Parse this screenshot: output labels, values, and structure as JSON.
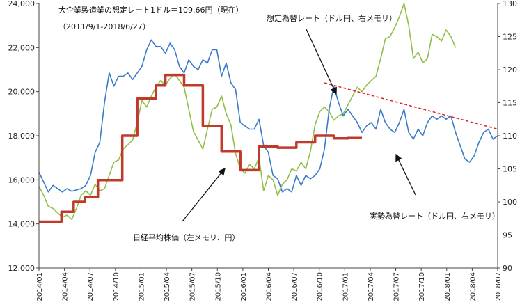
{
  "chart_data": {
    "type": "line",
    "title": "大企業製造業の想定レート1ドル＝109.66円（現在）",
    "subtitle": "（2011/9/1-2018/6/27）",
    "x_labels": [
      "2014/01",
      "2014/04",
      "2014/07",
      "2014/10",
      "2015/01",
      "2015/04",
      "2015/07",
      "2015/10",
      "2016/01",
      "2016/04",
      "2016/07",
      "2016/10",
      "2017/01",
      "2017/04",
      "2017/07",
      "2017/10",
      "2018/01",
      "2018/04",
      "2018/07"
    ],
    "y_left": {
      "ticks": [
        "12,000",
        "14,000",
        "16,000",
        "18,000",
        "20,000",
        "22,000",
        "24,000"
      ],
      "ylim": [
        12000,
        24000
      ]
    },
    "y_right": {
      "ticks": [
        "90",
        "95",
        "100",
        "105",
        "110",
        "115",
        "120",
        "125",
        "130"
      ],
      "ylim": [
        90,
        130
      ]
    },
    "annotations": {
      "assumed_rate": "想定為替レート（ドル円、右メモリ）",
      "actual_rate": "実勢為替レート（ドル円、右メモリ）",
      "nikkei": "日経平均株価（左メモリ、円）"
    },
    "series": [
      {
        "name": "想定為替レート（ドル円、右メモリ）",
        "color": "#c0392b",
        "axis": "right",
        "step": true,
        "points": [
          [
            0,
            97
          ],
          [
            2.4,
            97
          ],
          [
            2.4,
            98.5
          ],
          [
            3.7,
            98.5
          ],
          [
            3.7,
            100
          ],
          [
            4.9,
            100
          ],
          [
            4.9,
            100.7
          ],
          [
            6.3,
            100.7
          ],
          [
            6.3,
            103.3
          ],
          [
            8.9,
            103.3
          ],
          [
            8.9,
            110
          ],
          [
            10.5,
            110
          ],
          [
            10.5,
            115.6
          ],
          [
            12.5,
            115.6
          ],
          [
            12.5,
            117.6
          ],
          [
            13.5,
            117.6
          ],
          [
            13.5,
            119.2
          ],
          [
            15.5,
            119.2
          ],
          [
            15.5,
            117.6
          ],
          [
            17.5,
            117.6
          ],
          [
            17.5,
            111.5
          ],
          [
            19.5,
            111.5
          ],
          [
            19.5,
            107.6
          ],
          [
            21.5,
            107.6
          ],
          [
            21.5,
            104.8
          ],
          [
            23.5,
            104.8
          ],
          [
            23.5,
            108.4
          ],
          [
            25.5,
            108.4
          ],
          [
            25.5,
            108.2
          ],
          [
            27.5,
            108.2
          ],
          [
            27.5,
            109
          ],
          [
            29.5,
            109
          ],
          [
            29.5,
            110
          ],
          [
            31.5,
            110
          ],
          [
            31.5,
            109.6
          ],
          [
            33,
            109.6
          ],
          [
            33,
            109.66
          ],
          [
            34.5,
            109.66
          ]
        ]
      },
      {
        "name": "実勢為替レート（ドル円、右メモリ）",
        "color": "#3a7bc8",
        "axis": "right",
        "points": [
          [
            0,
            104.5
          ],
          [
            0.5,
            103
          ],
          [
            1,
            101.5
          ],
          [
            1.5,
            102.5
          ],
          [
            2,
            102
          ],
          [
            2.5,
            101.5
          ],
          [
            3,
            102
          ],
          [
            3.5,
            101.6
          ],
          [
            4,
            101.8
          ],
          [
            4.5,
            102
          ],
          [
            5,
            102.5
          ],
          [
            5.5,
            104
          ],
          [
            6,
            107.5
          ],
          [
            6.5,
            109
          ],
          [
            7,
            115
          ],
          [
            7.5,
            119.5
          ],
          [
            8,
            117.5
          ],
          [
            8.5,
            119
          ],
          [
            9,
            119
          ],
          [
            9.5,
            119.5
          ],
          [
            10,
            118.5
          ],
          [
            10.5,
            119.5
          ],
          [
            11,
            120.5
          ],
          [
            11.5,
            123
          ],
          [
            12,
            124.5
          ],
          [
            12.5,
            123.5
          ],
          [
            13,
            123.5
          ],
          [
            13.5,
            122.5
          ],
          [
            14,
            124
          ],
          [
            14.5,
            123
          ],
          [
            15,
            120.5
          ],
          [
            15.5,
            119.5
          ],
          [
            16,
            121.5
          ],
          [
            16.5,
            120.5
          ],
          [
            17,
            120
          ],
          [
            17.5,
            121.5
          ],
          [
            18,
            121
          ],
          [
            18.5,
            123
          ],
          [
            19,
            123
          ],
          [
            19.5,
            119
          ],
          [
            20,
            121
          ],
          [
            20.5,
            118
          ],
          [
            21,
            117
          ],
          [
            21.5,
            112
          ],
          [
            22,
            111.5
          ],
          [
            22.5,
            111
          ],
          [
            23,
            111
          ],
          [
            23.5,
            112.5
          ],
          [
            24,
            108.5
          ],
          [
            24.5,
            107.5
          ],
          [
            25,
            104
          ],
          [
            25.5,
            103.5
          ],
          [
            26,
            101.5
          ],
          [
            26.5,
            102
          ],
          [
            27,
            101.5
          ],
          [
            27.5,
            104
          ],
          [
            28,
            102.5
          ],
          [
            28.5,
            104
          ],
          [
            29,
            103.5
          ],
          [
            29.5,
            104
          ],
          [
            30,
            105
          ],
          [
            30.5,
            108
          ],
          [
            31,
            114
          ],
          [
            31.5,
            117.5
          ],
          [
            32,
            115
          ],
          [
            32.5,
            113
          ],
          [
            33,
            114
          ],
          [
            33.5,
            113
          ],
          [
            34,
            112
          ],
          [
            34.5,
            110.5
          ],
          [
            35,
            111.5
          ],
          [
            35.5,
            112
          ],
          [
            36,
            111
          ],
          [
            36.5,
            114
          ],
          [
            37,
            112
          ],
          [
            37.5,
            111
          ],
          [
            38,
            110.5
          ],
          [
            38.5,
            112
          ],
          [
            39,
            114
          ],
          [
            39.5,
            110.5
          ],
          [
            40,
            109.5
          ],
          [
            40.5,
            111
          ],
          [
            41,
            110
          ],
          [
            41.5,
            112
          ],
          [
            42,
            113
          ],
          [
            42.5,
            112.5
          ],
          [
            43,
            113
          ],
          [
            43.5,
            112.5
          ],
          [
            44,
            113
          ],
          [
            44.5,
            110.5
          ],
          [
            45,
            108.5
          ],
          [
            45.5,
            106.5
          ],
          [
            46,
            106
          ],
          [
            46.5,
            107
          ],
          [
            47,
            109
          ],
          [
            47.5,
            110.5
          ],
          [
            48,
            111
          ],
          [
            48.5,
            109.5
          ],
          [
            49,
            110
          ]
        ]
      },
      {
        "name": "日経平均株価（左メモリ、円）",
        "color": "#8fbf48",
        "axis": "left",
        "points": [
          [
            0,
            15700
          ],
          [
            0.5,
            15300
          ],
          [
            1,
            14800
          ],
          [
            1.5,
            14700
          ],
          [
            2,
            14500
          ],
          [
            2.5,
            14300
          ],
          [
            3,
            14400
          ],
          [
            3.5,
            14200
          ],
          [
            4,
            14700
          ],
          [
            4.5,
            15300
          ],
          [
            5,
            15500
          ],
          [
            5.5,
            15300
          ],
          [
            6,
            15800
          ],
          [
            6.5,
            15500
          ],
          [
            7,
            15600
          ],
          [
            7.5,
            16200
          ],
          [
            8,
            16800
          ],
          [
            8.5,
            16900
          ],
          [
            9,
            17400
          ],
          [
            9.5,
            17600
          ],
          [
            10,
            17800
          ],
          [
            10.5,
            18600
          ],
          [
            11,
            19600
          ],
          [
            11.5,
            19300
          ],
          [
            12,
            19800
          ],
          [
            12.5,
            20200
          ],
          [
            13,
            20500
          ],
          [
            13.5,
            20300
          ],
          [
            14,
            20600
          ],
          [
            14.5,
            20800
          ],
          [
            15,
            20500
          ],
          [
            15.5,
            20200
          ],
          [
            16,
            19200
          ],
          [
            16.5,
            18200
          ],
          [
            17,
            17800
          ],
          [
            17.5,
            17400
          ],
          [
            18,
            18300
          ],
          [
            18.5,
            19200
          ],
          [
            19,
            19300
          ],
          [
            19.5,
            19800
          ],
          [
            20,
            19000
          ],
          [
            20.5,
            18500
          ],
          [
            21,
            17200
          ],
          [
            21.5,
            16500
          ],
          [
            22,
            16300
          ],
          [
            22.5,
            16700
          ],
          [
            23,
            16500
          ],
          [
            23.5,
            17000
          ],
          [
            24,
            15500
          ],
          [
            24.5,
            16200
          ],
          [
            25,
            16000
          ],
          [
            25.5,
            15300
          ],
          [
            26,
            15800
          ],
          [
            26.5,
            16000
          ],
          [
            27,
            16500
          ],
          [
            27.5,
            16400
          ],
          [
            28,
            16800
          ],
          [
            28.5,
            16500
          ],
          [
            29,
            17300
          ],
          [
            29.5,
            18500
          ],
          [
            30,
            19100
          ],
          [
            30.5,
            19300
          ],
          [
            31,
            19100
          ],
          [
            31.5,
            18700
          ],
          [
            32,
            18900
          ],
          [
            32.5,
            19000
          ],
          [
            33,
            19400
          ],
          [
            33.5,
            19800
          ],
          [
            34,
            20200
          ],
          [
            34.5,
            20000
          ],
          [
            35,
            20300
          ],
          [
            35.5,
            20500
          ],
          [
            36,
            20700
          ],
          [
            36.5,
            21500
          ],
          [
            37,
            22400
          ],
          [
            37.5,
            22500
          ],
          [
            38,
            22900
          ],
          [
            38.5,
            23400
          ],
          [
            39,
            24000
          ],
          [
            39.5,
            23000
          ],
          [
            40,
            21500
          ],
          [
            40.5,
            21800
          ],
          [
            41,
            21300
          ],
          [
            41.5,
            21500
          ],
          [
            42,
            22600
          ],
          [
            42.5,
            22500
          ],
          [
            43,
            22300
          ],
          [
            43.5,
            22800
          ],
          [
            44,
            22500
          ],
          [
            44.5,
            22000
          ]
        ]
      }
    ],
    "trend_line": {
      "color": "#e02020",
      "style": "dashed",
      "from": [
        30.5,
        118
      ],
      "to": [
        49,
        111
      ]
    },
    "arrows": [
      "assumed_rate",
      "actual_rate",
      "nikkei"
    ]
  }
}
